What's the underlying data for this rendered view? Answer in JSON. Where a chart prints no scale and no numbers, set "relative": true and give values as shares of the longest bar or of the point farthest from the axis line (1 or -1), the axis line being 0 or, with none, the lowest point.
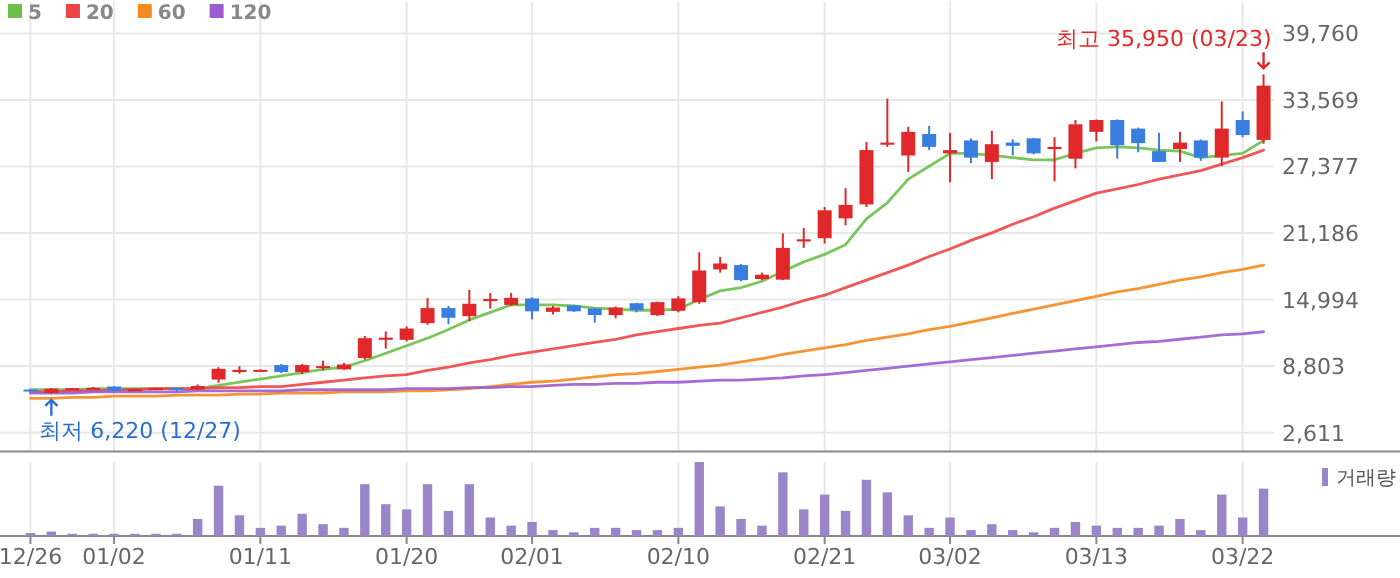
{
  "chart_data": [
    {
      "type": "candlestick",
      "ohlc": [
        [
          6620,
          6650,
          6550,
          6600
        ],
        [
          6300,
          6760,
          6220,
          6700
        ],
        [
          6600,
          6780,
          6580,
          6750
        ],
        [
          6700,
          6850,
          6650,
          6780
        ],
        [
          6900,
          6950,
          6450,
          6500
        ],
        [
          6550,
          6680,
          6500,
          6650
        ],
        [
          6600,
          6780,
          6560,
          6750
        ],
        [
          6750,
          6780,
          6400,
          6560
        ],
        [
          6620,
          7100,
          6580,
          6950
        ],
        [
          7550,
          8700,
          7250,
          8550
        ],
        [
          8250,
          8800,
          8100,
          8450
        ],
        [
          8350,
          8500,
          8300,
          8450
        ],
        [
          8900,
          9000,
          8150,
          8250
        ],
        [
          8250,
          9000,
          8050,
          8900
        ],
        [
          8700,
          9300,
          8400,
          8800
        ],
        [
          8500,
          9100,
          8450,
          8950
        ],
        [
          9550,
          11600,
          9400,
          11400
        ],
        [
          11250,
          12030,
          10430,
          11450
        ],
        [
          11250,
          12500,
          11100,
          12300
        ],
        [
          12800,
          15140,
          12650,
          14200
        ],
        [
          14200,
          14400,
          12700,
          13300
        ],
        [
          13450,
          15900,
          13000,
          14600
        ],
        [
          14850,
          15600,
          14150,
          15050
        ],
        [
          14500,
          15600,
          14400,
          15150
        ],
        [
          15100,
          15200,
          13150,
          13900
        ],
        [
          13850,
          14400,
          13600,
          14250
        ],
        [
          14450,
          14500,
          13850,
          13900
        ],
        [
          14150,
          14200,
          12850,
          13550
        ],
        [
          13550,
          14350,
          13250,
          14250
        ],
        [
          14650,
          14700,
          13800,
          14000
        ],
        [
          13550,
          14800,
          13450,
          14750
        ],
        [
          13950,
          15300,
          13800,
          15100
        ],
        [
          14750,
          19400,
          14600,
          17700
        ],
        [
          17800,
          18950,
          17500,
          18350
        ],
        [
          18200,
          18300,
          16700,
          16800
        ],
        [
          16900,
          17500,
          16800,
          17300
        ],
        [
          16850,
          21150,
          16800,
          19800
        ],
        [
          20400,
          21650,
          19800,
          20600
        ],
        [
          20700,
          23600,
          20200,
          23300
        ],
        [
          22550,
          25360,
          21900,
          23800
        ],
        [
          23850,
          29650,
          23600,
          28900
        ],
        [
          29400,
          33700,
          29200,
          29600
        ],
        [
          28400,
          31070,
          26870,
          30600
        ],
        [
          30400,
          31150,
          28900,
          29200
        ],
        [
          28600,
          30500,
          25900,
          28900
        ],
        [
          29800,
          30000,
          27700,
          28200
        ],
        [
          27800,
          30700,
          26200,
          29450
        ],
        [
          29600,
          29900,
          28400,
          29300
        ],
        [
          30000,
          30050,
          28500,
          28600
        ],
        [
          29000,
          30100,
          26000,
          29200
        ],
        [
          28100,
          31700,
          27200,
          31300
        ],
        [
          30600,
          31750,
          29700,
          31700
        ],
        [
          31700,
          31750,
          28100,
          29350
        ],
        [
          30900,
          31000,
          28700,
          29550
        ],
        [
          28800,
          30500,
          27800,
          27800
        ],
        [
          29000,
          30600,
          27800,
          29600
        ],
        [
          29800,
          29900,
          27900,
          28200
        ],
        [
          28200,
          33430,
          27400,
          30900
        ],
        [
          31700,
          32500,
          30100,
          30300
        ],
        [
          29850,
          35950,
          29500,
          34900
        ]
      ],
      "series": [
        {
          "name": "5",
          "type": "line",
          "color": "#6cc04a",
          "values": [
            6600,
            6600,
            6600,
            6700,
            6700,
            6700,
            6700,
            6700,
            6700,
            7000,
            7300,
            7600,
            7900,
            8200,
            8500,
            8700,
            9300,
            10000,
            10700,
            11400,
            12200,
            13100,
            13800,
            14500,
            14500,
            14500,
            14400,
            14200,
            14100,
            14000,
            14000,
            14100,
            15000,
            15800,
            16100,
            16700,
            17600,
            18500,
            19200,
            20100,
            22500,
            24000,
            26200,
            27400,
            28600,
            28600,
            28400,
            28200,
            28000,
            28000,
            28600,
            29100,
            29200,
            29100,
            28900,
            28800,
            28200,
            28400,
            28600,
            29800
          ]
        },
        {
          "name": "20",
          "type": "line",
          "color": "#ec4646",
          "values": [
            6400,
            6400,
            6500,
            6500,
            6600,
            6600,
            6700,
            6700,
            6700,
            6800,
            6800,
            6900,
            6900,
            7100,
            7300,
            7500,
            7700,
            7900,
            8000,
            8400,
            8700,
            9100,
            9400,
            9800,
            10100,
            10400,
            10700,
            11000,
            11300,
            11700,
            12000,
            12300,
            12600,
            12800,
            13300,
            13800,
            14300,
            14900,
            15400,
            16100,
            16800,
            17500,
            18200,
            19000,
            19700,
            20500,
            21200,
            22000,
            22700,
            23500,
            24200,
            24900,
            25300,
            25700,
            26200,
            26600,
            27000,
            27600,
            28200,
            28900
          ]
        },
        {
          "name": "60",
          "type": "line",
          "color": "#f58a1f",
          "values": [
            5800,
            5800,
            5900,
            5900,
            6000,
            6000,
            6000,
            6100,
            6100,
            6100,
            6200,
            6200,
            6300,
            6300,
            6300,
            6400,
            6400,
            6400,
            6500,
            6500,
            6600,
            6700,
            6900,
            7100,
            7300,
            7400,
            7600,
            7800,
            8000,
            8100,
            8300,
            8500,
            8700,
            8900,
            9200,
            9500,
            9900,
            10200,
            10500,
            10800,
            11200,
            11500,
            11800,
            12200,
            12500,
            12900,
            13300,
            13700,
            14100,
            14500,
            14900,
            15300,
            15700,
            16000,
            16400,
            16800,
            17100,
            17500,
            17800,
            18200
          ]
        },
        {
          "name": "120",
          "type": "line",
          "color": "#9c5cd0",
          "values": [
            6300,
            6300,
            6300,
            6400,
            6400,
            6400,
            6400,
            6400,
            6500,
            6500,
            6500,
            6500,
            6500,
            6600,
            6600,
            6600,
            6600,
            6600,
            6700,
            6700,
            6700,
            6800,
            6800,
            6900,
            6900,
            7000,
            7100,
            7100,
            7200,
            7200,
            7300,
            7300,
            7400,
            7500,
            7500,
            7600,
            7700,
            7900,
            8000,
            8200,
            8400,
            8600,
            8800,
            9000,
            9200,
            9400,
            9600,
            9800,
            10000,
            10200,
            10400,
            10600,
            10800,
            11000,
            11100,
            11300,
            11500,
            11700,
            11800,
            12000
          ]
        }
      ],
      "ylim": [
        865,
        39760
      ],
      "yticks": [
        {
          "value": 2611,
          "label": "2,611"
        },
        {
          "value": 8803,
          "label": "8,803"
        },
        {
          "value": 14994,
          "label": "14,994"
        },
        {
          "value": 21186,
          "label": "21,186"
        },
        {
          "value": 27377,
          "label": "27,377"
        },
        {
          "value": 33569,
          "label": "33,569"
        },
        {
          "value": 39760,
          "label": "39,760"
        }
      ],
      "grid": true,
      "legend": "top left",
      "tick_labels": "y",
      "annotations": [
        "최고 35,950 (03/23)",
        "최저 6,220 (12/27)"
      ]
    },
    {
      "type": "bar",
      "categories": [
        "12/26",
        null,
        null,
        null,
        "01/02",
        null,
        null,
        null,
        null,
        null,
        null,
        "01/11",
        null,
        null,
        null,
        null,
        null,
        null,
        "01/20",
        null,
        null,
        null,
        null,
        null,
        "02/01",
        null,
        null,
        null,
        null,
        null,
        null,
        "02/10",
        null,
        null,
        null,
        null,
        null,
        null,
        "02/21",
        null,
        null,
        null,
        null,
        null,
        "03/02",
        null,
        null,
        null,
        null,
        null,
        null,
        "03/13",
        null,
        null,
        null,
        null,
        null,
        null,
        "03/22",
        null
      ],
      "series": [
        {
          "name": "거래량",
          "color": "#9b85c9",
          "values": [
            0.04,
            0.06,
            0.03,
            0.03,
            0.03,
            0.03,
            0.03,
            0.03,
            0.23,
            0.68,
            0.28,
            0.11,
            0.14,
            0.3,
            0.16,
            0.11,
            0.7,
            0.43,
            0.36,
            0.7,
            0.34,
            0.7,
            0.25,
            0.14,
            0.19,
            0.08,
            0.05,
            0.11,
            0.11,
            0.08,
            0.08,
            0.11,
            1,
            0.4,
            0.23,
            0.14,
            0.86,
            0.36,
            0.56,
            0.34,
            0.76,
            0.59,
            0.28,
            0.11,
            0.25,
            0.08,
            0.16,
            0.08,
            0.05,
            0.11,
            0.19,
            0.14,
            0.11,
            0.11,
            0.14,
            0.23,
            0.08,
            0.56,
            0.25,
            0.64
          ]
        }
      ],
      "relative": true,
      "grid": "x",
      "legend": "top right",
      "tick_labels": "x"
    }
  ]
}
